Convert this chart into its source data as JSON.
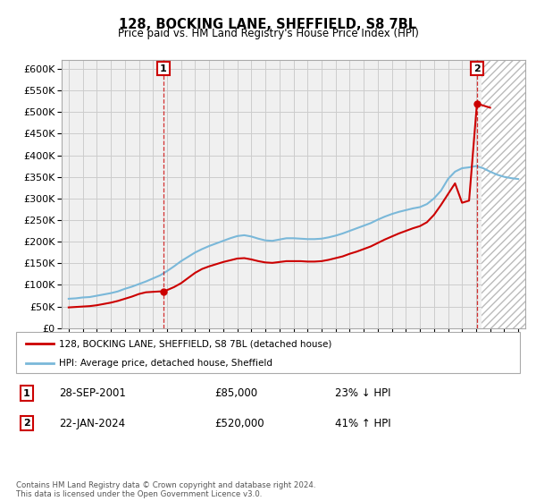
{
  "title": "128, BOCKING LANE, SHEFFIELD, S8 7BL",
  "subtitle": "Price paid vs. HM Land Registry's House Price Index (HPI)",
  "hpi_label": "HPI: Average price, detached house, Sheffield",
  "property_label": "128, BOCKING LANE, SHEFFIELD, S8 7BL (detached house)",
  "transactions": [
    {
      "id": 1,
      "date": "28-SEP-2001",
      "price": 85000,
      "pct": "23%",
      "dir": "↓"
    },
    {
      "id": 2,
      "date": "22-JAN-2024",
      "price": 520000,
      "pct": "41%",
      "dir": "↑"
    }
  ],
  "transaction_years": [
    2001.75,
    2024.06
  ],
  "transaction_prices": [
    85000,
    520000
  ],
  "footer": "Contains HM Land Registry data © Crown copyright and database right 2024.\nThis data is licensed under the Open Government Licence v3.0.",
  "ylim": [
    0,
    620000
  ],
  "yticks": [
    0,
    50000,
    100000,
    150000,
    200000,
    250000,
    300000,
    350000,
    400000,
    450000,
    500000,
    550000,
    600000
  ],
  "xlim_start": 1994.5,
  "xlim_end": 2027.5,
  "hpi_color": "#7ab8d9",
  "property_color": "#cc0000",
  "grid_color": "#cccccc",
  "bg_color": "#f0f0f0",
  "hatch_color": "#bbbbbb",
  "years_hpi": [
    1995,
    1995.5,
    1996,
    1996.5,
    1997,
    1997.5,
    1998,
    1998.5,
    1999,
    1999.5,
    2000,
    2000.5,
    2001,
    2001.5,
    2002,
    2002.5,
    2003,
    2003.5,
    2004,
    2004.5,
    2005,
    2005.5,
    2006,
    2006.5,
    2007,
    2007.5,
    2008,
    2008.5,
    2009,
    2009.5,
    2010,
    2010.5,
    2011,
    2011.5,
    2012,
    2012.5,
    2013,
    2013.5,
    2014,
    2014.5,
    2015,
    2015.5,
    2016,
    2016.5,
    2017,
    2017.5,
    2018,
    2018.5,
    2019,
    2019.5,
    2020,
    2020.5,
    2021,
    2021.5,
    2022,
    2022.5,
    2023,
    2023.5,
    2024,
    2024.5,
    2025,
    2025.5,
    2026,
    2026.5,
    2027
  ],
  "hpi_values": [
    68000,
    69000,
    71000,
    72000,
    75000,
    78000,
    81000,
    85000,
    91000,
    96000,
    102000,
    108000,
    115000,
    122000,
    132000,
    143000,
    155000,
    165000,
    175000,
    183000,
    190000,
    196000,
    202000,
    208000,
    213000,
    215000,
    212000,
    207000,
    203000,
    202000,
    205000,
    208000,
    208000,
    207000,
    206000,
    206000,
    207000,
    210000,
    214000,
    219000,
    225000,
    231000,
    237000,
    243000,
    251000,
    258000,
    264000,
    269000,
    273000,
    277000,
    280000,
    287000,
    300000,
    318000,
    345000,
    362000,
    370000,
    372000,
    375000,
    370000,
    362000,
    355000,
    350000,
    347000,
    345000
  ],
  "years_prop": [
    1995,
    1995.5,
    1996,
    1996.5,
    1997,
    1997.5,
    1998,
    1998.5,
    1999,
    1999.5,
    2000,
    2000.5,
    2001,
    2001.5,
    2001.75,
    2002,
    2002.5,
    2003,
    2003.5,
    2004,
    2004.5,
    2005,
    2005.5,
    2006,
    2006.5,
    2007,
    2007.5,
    2008,
    2008.5,
    2009,
    2009.5,
    2010,
    2010.5,
    2011,
    2011.5,
    2012,
    2012.5,
    2013,
    2013.5,
    2014,
    2014.5,
    2015,
    2015.5,
    2016,
    2016.5,
    2017,
    2017.5,
    2018,
    2018.5,
    2019,
    2019.5,
    2020,
    2020.5,
    2021,
    2021.5,
    2022,
    2022.5,
    2023,
    2023.5,
    2024.06,
    2024.5,
    2025
  ],
  "prop_values": [
    48000,
    49000,
    50000,
    51000,
    53000,
    56000,
    59000,
    63000,
    68000,
    73000,
    79000,
    83000,
    84000,
    85000,
    85000,
    88000,
    95000,
    104000,
    116000,
    128000,
    137000,
    143000,
    148000,
    153000,
    157000,
    161000,
    162000,
    159000,
    155000,
    152000,
    151000,
    153000,
    155000,
    155000,
    155000,
    154000,
    154000,
    155000,
    158000,
    162000,
    166000,
    172000,
    177000,
    183000,
    189000,
    197000,
    205000,
    212000,
    219000,
    225000,
    231000,
    236000,
    245000,
    262000,
    285000,
    310000,
    335000,
    290000,
    295000,
    520000,
    515000,
    510000
  ]
}
